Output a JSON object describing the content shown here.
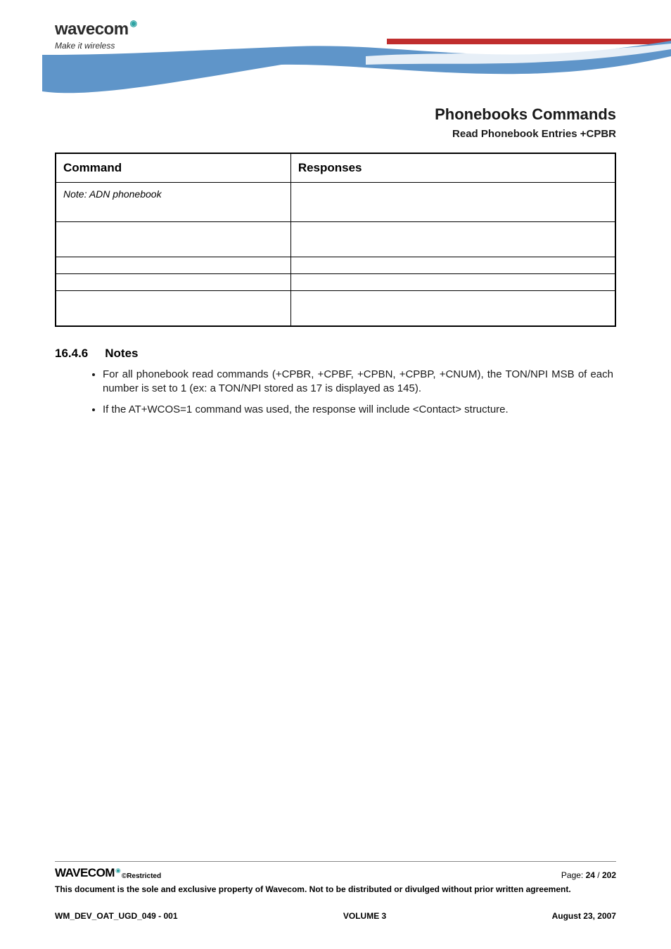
{
  "header": {
    "logo_text": "wavecom",
    "tagline": "Make it wireless",
    "swoosh_colors": {
      "blue": "#5f95c9",
      "dark_blue": "#3d6ea3",
      "red": "#c02e2e",
      "white": "#ffffff"
    }
  },
  "title": {
    "main": "Phonebooks Commands",
    "sub": "Read Phonebook Entries +CPBR"
  },
  "table": {
    "headers": [
      "Command",
      "Responses"
    ],
    "rows": [
      {
        "command": "Note: ADN phonebook",
        "response": "",
        "note": true,
        "height_class": "row-tall"
      },
      {
        "command": "",
        "response": "",
        "height_class": "row-med"
      },
      {
        "command": "",
        "response": "",
        "height_class": "row-small"
      },
      {
        "command": "",
        "response": "",
        "height_class": "row-small"
      },
      {
        "command": "",
        "response": "",
        "height_class": "row-med"
      }
    ],
    "border_color": "#000000"
  },
  "notes": {
    "heading_num": "16.4.6",
    "heading_label": "Notes",
    "items": [
      "For all phonebook read commands (+CPBR, +CPBF, +CPBN, +CPBP, +CNUM), the TON/NPI MSB of each number is set to 1 (ex: a TON/NPI stored as 17 is displayed as 145).",
      "If the AT+WCOS=1 command was used, the response will include <Contact> structure."
    ]
  },
  "footer": {
    "logo_text": "WAVECOM",
    "restricted": "©Restricted",
    "page_label": "Page: ",
    "page_current": "24",
    "page_sep": " / ",
    "page_total": "202",
    "disclaimer": "This document is the sole and exclusive property of Wavecom. Not to be distributed or divulged without prior written agreement.",
    "doc_id": "WM_DEV_OAT_UGD_049 - 001",
    "volume": "VOLUME 3",
    "date": "August 23, 2007"
  }
}
